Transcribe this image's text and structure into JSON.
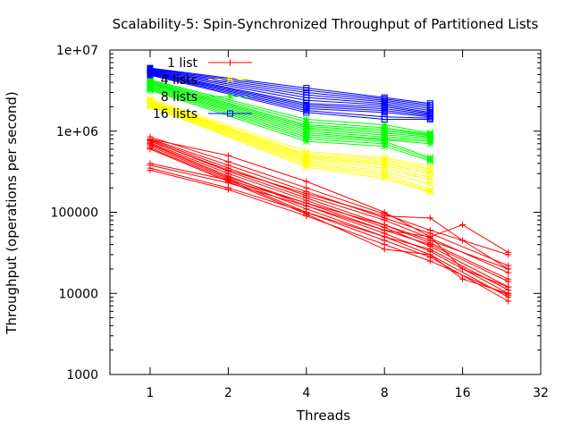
{
  "chart_data": {
    "type": "line",
    "title": "Scalability-5: Spin-Synchronized Throughput of Partitioned Lists",
    "xlabel": "Threads",
    "ylabel": "Throughput (operations per second)",
    "x_scale": "log2",
    "y_scale": "log10",
    "xlim": [
      0.7,
      32
    ],
    "ylim": [
      1000,
      10000000
    ],
    "x_ticks": [
      1,
      2,
      4,
      8,
      16,
      32
    ],
    "x_tick_labels": [
      "1",
      "2",
      "4",
      "8",
      "16",
      "32"
    ],
    "y_ticks": [
      1000,
      10000,
      100000,
      1000000,
      10000000
    ],
    "y_tick_labels": [
      "1000",
      "10000",
      "100000",
      "1e+06",
      "1e+07"
    ],
    "grid": false,
    "legend_position": "top-left",
    "series": [
      {
        "name": "1 list",
        "color": "#ff0000",
        "marker": "plus",
        "runs": [
          {
            "x": [
              1,
              2,
              4,
              8,
              12,
              24
            ],
            "y": [
              850000,
              420000,
              200000,
              95000,
              60000,
              30000
            ]
          },
          {
            "x": [
              1,
              2,
              4,
              8,
              12,
              24
            ],
            "y": [
              800000,
              380000,
              180000,
              85000,
              55000,
              22000
            ]
          },
          {
            "x": [
              1,
              2,
              4,
              8,
              12,
              24
            ],
            "y": [
              780000,
              350000,
              160000,
              80000,
              48000,
              18000
            ]
          },
          {
            "x": [
              1,
              2,
              4,
              8,
              12,
              24
            ],
            "y": [
              760000,
              320000,
              150000,
              70000,
              42000,
              15000
            ]
          },
          {
            "x": [
              1,
              2,
              4,
              8,
              12,
              24
            ],
            "y": [
              720000,
              300000,
              140000,
              65000,
              38000,
              12000
            ]
          },
          {
            "x": [
              1,
              2,
              4,
              8,
              12,
              24
            ],
            "y": [
              700000,
              280000,
              120000,
              55000,
              33000,
              10000
            ]
          },
          {
            "x": [
              1,
              2,
              4,
              8,
              12,
              24
            ],
            "y": [
              650000,
              260000,
              110000,
              50000,
              30000,
              9000
            ]
          },
          {
            "x": [
              1,
              2,
              4,
              8,
              12,
              24
            ],
            "y": [
              620000,
              250000,
              100000,
              45000,
              28000,
              8000
            ]
          },
          {
            "x": [
              1,
              2,
              4,
              8,
              12,
              24
            ],
            "y": [
              400000,
              250000,
              130000,
              70000,
              45000,
              20000
            ]
          },
          {
            "x": [
              1,
              2,
              4,
              8,
              12,
              24
            ],
            "y": [
              380000,
              230000,
              120000,
              60000,
              40000,
              14000
            ]
          },
          {
            "x": [
              1,
              2,
              4,
              8,
              12,
              24
            ],
            "y": [
              350000,
              200000,
              100000,
              50000,
              35000,
              11000
            ]
          },
          {
            "x": [
              1,
              2,
              4,
              8,
              12,
              24
            ],
            "y": [
              330000,
              190000,
              90000,
              40000,
              25000,
              9500
            ]
          },
          {
            "x": [
              1,
              2,
              4,
              8,
              12,
              16,
              24
            ],
            "y": [
              800000,
              500000,
              240000,
              100000,
              50000,
              70000,
              32000
            ]
          },
          {
            "x": [
              1,
              2,
              4,
              8,
              12,
              16,
              24
            ],
            "y": [
              750000,
              330000,
              170000,
              90000,
              85000,
              45000,
              20000
            ]
          },
          {
            "x": [
              1,
              2,
              4,
              8,
              12,
              16,
              24
            ],
            "y": [
              680000,
              270000,
              130000,
              60000,
              50000,
              20000,
              12000
            ]
          },
          {
            "x": [
              1,
              2,
              4,
              8,
              12,
              16,
              24
            ],
            "y": [
              600000,
              240000,
              95000,
              35000,
              30000,
              15000,
              10000
            ]
          }
        ]
      },
      {
        "name": "4 lists",
        "color": "#ffff00",
        "marker": "x",
        "runs": [
          {
            "x": [
              1,
              4,
              8,
              12
            ],
            "y": [
              2500000,
              560000,
              470000,
              370000
            ]
          },
          {
            "x": [
              1,
              4,
              8,
              12
            ],
            "y": [
              2400000,
              520000,
              450000,
              340000
            ]
          },
          {
            "x": [
              1,
              4,
              8,
              12
            ],
            "y": [
              2350000,
              500000,
              420000,
              320000
            ]
          },
          {
            "x": [
              1,
              4,
              8,
              12
            ],
            "y": [
              2300000,
              480000,
              400000,
              300000
            ]
          },
          {
            "x": [
              1,
              4,
              8,
              12
            ],
            "y": [
              2250000,
              460000,
              380000,
              270000
            ]
          },
          {
            "x": [
              1,
              4,
              8,
              12
            ],
            "y": [
              2200000,
              440000,
              350000,
              250000
            ]
          },
          {
            "x": [
              1,
              4,
              8,
              12
            ],
            "y": [
              2150000,
              420000,
              320000,
              220000
            ]
          },
          {
            "x": [
              1,
              4,
              8,
              12
            ],
            "y": [
              2100000,
              400000,
              300000,
              190000
            ]
          },
          {
            "x": [
              1,
              4,
              8,
              12
            ],
            "y": [
              2050000,
              380000,
              280000,
              180000
            ]
          },
          {
            "x": [
              1,
              4,
              8,
              12
            ],
            "y": [
              2000000,
              360000,
              260000,
              175000
            ]
          }
        ]
      },
      {
        "name": "8 lists",
        "color": "#00ff00",
        "marker": "star",
        "runs": [
          {
            "x": [
              1,
              4,
              8,
              12
            ],
            "y": [
              4300000,
              1400000,
              1200000,
              950000
            ]
          },
          {
            "x": [
              1,
              4,
              8,
              12
            ],
            "y": [
              4200000,
              1300000,
              1100000,
              920000
            ]
          },
          {
            "x": [
              1,
              4,
              8,
              12
            ],
            "y": [
              4100000,
              1200000,
              1050000,
              900000
            ]
          },
          {
            "x": [
              1,
              4,
              8,
              12
            ],
            "y": [
              4000000,
              1150000,
              1000000,
              880000
            ]
          },
          {
            "x": [
              1,
              4,
              8,
              12
            ],
            "y": [
              3900000,
              1100000,
              950000,
              850000
            ]
          },
          {
            "x": [
              1,
              4,
              8,
              12
            ],
            "y": [
              3800000,
              1050000,
              900000,
              820000
            ]
          },
          {
            "x": [
              1,
              4,
              8,
              12
            ],
            "y": [
              3700000,
              1000000,
              850000,
              780000
            ]
          },
          {
            "x": [
              1,
              4,
              8,
              12
            ],
            "y": [
              3600000,
              950000,
              800000,
              750000
            ]
          },
          {
            "x": [
              1,
              4,
              8,
              12
            ],
            "y": [
              3500000,
              900000,
              780000,
              700000
            ]
          },
          {
            "x": [
              1,
              4,
              8,
              12
            ],
            "y": [
              3400000,
              850000,
              750000,
              470000
            ]
          },
          {
            "x": [
              1,
              4,
              8,
              12
            ],
            "y": [
              3300000,
              800000,
              700000,
              450000
            ]
          },
          {
            "x": [
              1,
              4,
              8,
              12
            ],
            "y": [
              3200000,
              750000,
              650000,
              430000
            ]
          }
        ]
      },
      {
        "name": "16 lists",
        "color": "#0000ff",
        "marker": "square",
        "runs": [
          {
            "x": [
              1,
              4,
              8,
              12
            ],
            "y": [
              6000000,
              3400000,
              2600000,
              2200000
            ]
          },
          {
            "x": [
              1,
              4,
              8,
              12
            ],
            "y": [
              5900000,
              3200000,
              2500000,
              2100000
            ]
          },
          {
            "x": [
              1,
              4,
              8,
              12
            ],
            "y": [
              5800000,
              3000000,
              2400000,
              2000000
            ]
          },
          {
            "x": [
              1,
              4,
              8,
              12
            ],
            "y": [
              5700000,
              2800000,
              2300000,
              1900000
            ]
          },
          {
            "x": [
              1,
              4,
              8,
              12
            ],
            "y": [
              5600000,
              2600000,
              2200000,
              1800000
            ]
          },
          {
            "x": [
              1,
              4,
              8,
              12
            ],
            "y": [
              5500000,
              2400000,
              2100000,
              1700000
            ]
          },
          {
            "x": [
              1,
              4,
              8,
              12
            ],
            "y": [
              5400000,
              2200000,
              2000000,
              1650000
            ]
          },
          {
            "x": [
              1,
              4,
              8,
              12
            ],
            "y": [
              5300000,
              2100000,
              1900000,
              1600000
            ]
          },
          {
            "x": [
              1,
              4,
              8,
              12
            ],
            "y": [
              5200000,
              2000000,
              1800000,
              1550000
            ]
          },
          {
            "x": [
              1,
              4,
              8,
              12
            ],
            "y": [
              5100000,
              1900000,
              1700000,
              1500000
            ]
          },
          {
            "x": [
              1,
              4,
              8,
              12
            ],
            "y": [
              5000000,
              1800000,
              1500000,
              1450000
            ]
          },
          {
            "x": [
              1,
              4,
              8,
              12
            ],
            "y": [
              4900000,
              1700000,
              1400000,
              1400000
            ]
          }
        ]
      }
    ]
  }
}
